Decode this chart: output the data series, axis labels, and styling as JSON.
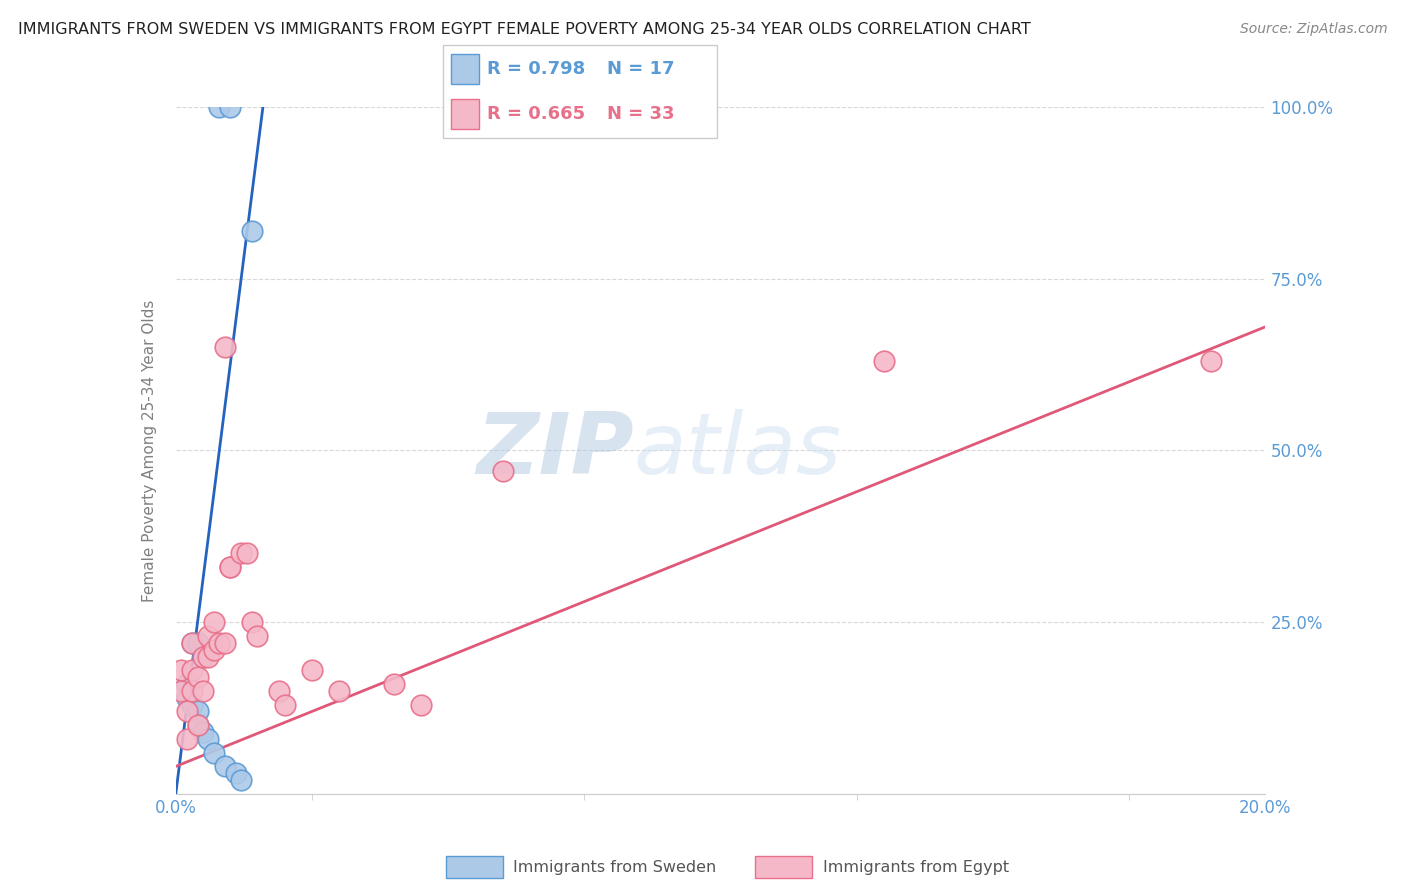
{
  "title": "IMMIGRANTS FROM SWEDEN VS IMMIGRANTS FROM EGYPT FEMALE POVERTY AMONG 25-34 YEAR OLDS CORRELATION CHART",
  "source": "Source: ZipAtlas.com",
  "ylabel": "Female Poverty Among 25-34 Year Olds",
  "watermark_zip": "ZIP",
  "watermark_atlas": "atlas",
  "xlim": [
    0.0,
    0.2
  ],
  "ylim": [
    0.0,
    1.0
  ],
  "sweden_color": "#adc9e8",
  "sweden_edge_color": "#5b9bd5",
  "egypt_color": "#f4b8c8",
  "egypt_edge_color": "#e8708a",
  "sweden_R": "0.798",
  "sweden_N": "17",
  "egypt_R": "0.665",
  "egypt_N": "33",
  "sweden_line_color": "#2563c0",
  "egypt_line_color": "#e05878",
  "legend_sweden_label": "Immigrants from Sweden",
  "legend_egypt_label": "Immigrants from Egypt",
  "sweden_points_x": [
    0.008,
    0.01,
    0.014,
    0.003,
    0.004,
    0.005,
    0.002,
    0.002,
    0.003,
    0.004,
    0.004,
    0.005,
    0.006,
    0.007,
    0.009,
    0.011,
    0.012
  ],
  "sweden_points_y": [
    1.0,
    1.0,
    0.82,
    0.22,
    0.22,
    0.2,
    0.16,
    0.14,
    0.13,
    0.12,
    0.1,
    0.09,
    0.08,
    0.06,
    0.04,
    0.03,
    0.02
  ],
  "egypt_points_x": [
    0.001,
    0.001,
    0.002,
    0.002,
    0.003,
    0.003,
    0.003,
    0.004,
    0.004,
    0.005,
    0.005,
    0.006,
    0.006,
    0.007,
    0.007,
    0.008,
    0.009,
    0.009,
    0.01,
    0.01,
    0.012,
    0.013,
    0.014,
    0.015,
    0.019,
    0.02,
    0.025,
    0.03,
    0.04,
    0.045,
    0.06,
    0.13,
    0.19
  ],
  "egypt_points_y": [
    0.18,
    0.15,
    0.12,
    0.08,
    0.22,
    0.18,
    0.15,
    0.17,
    0.1,
    0.2,
    0.15,
    0.23,
    0.2,
    0.25,
    0.21,
    0.22,
    0.65,
    0.22,
    0.33,
    0.33,
    0.35,
    0.35,
    0.25,
    0.23,
    0.15,
    0.13,
    0.18,
    0.15,
    0.16,
    0.13,
    0.47,
    0.63,
    0.63
  ],
  "sweden_line_x": [
    0.0,
    0.016
  ],
  "sweden_line_y": [
    0.0,
    1.0
  ],
  "egypt_line_x": [
    0.0,
    0.2
  ],
  "egypt_line_y": [
    0.04,
    0.68
  ],
  "axis_color": "#5b9bd5",
  "grid_color": "#d8d8d8",
  "ylabel_color": "#808080",
  "title_fontsize": 11.5,
  "source_fontsize": 10,
  "tick_fontsize": 12,
  "ylabel_fontsize": 11
}
